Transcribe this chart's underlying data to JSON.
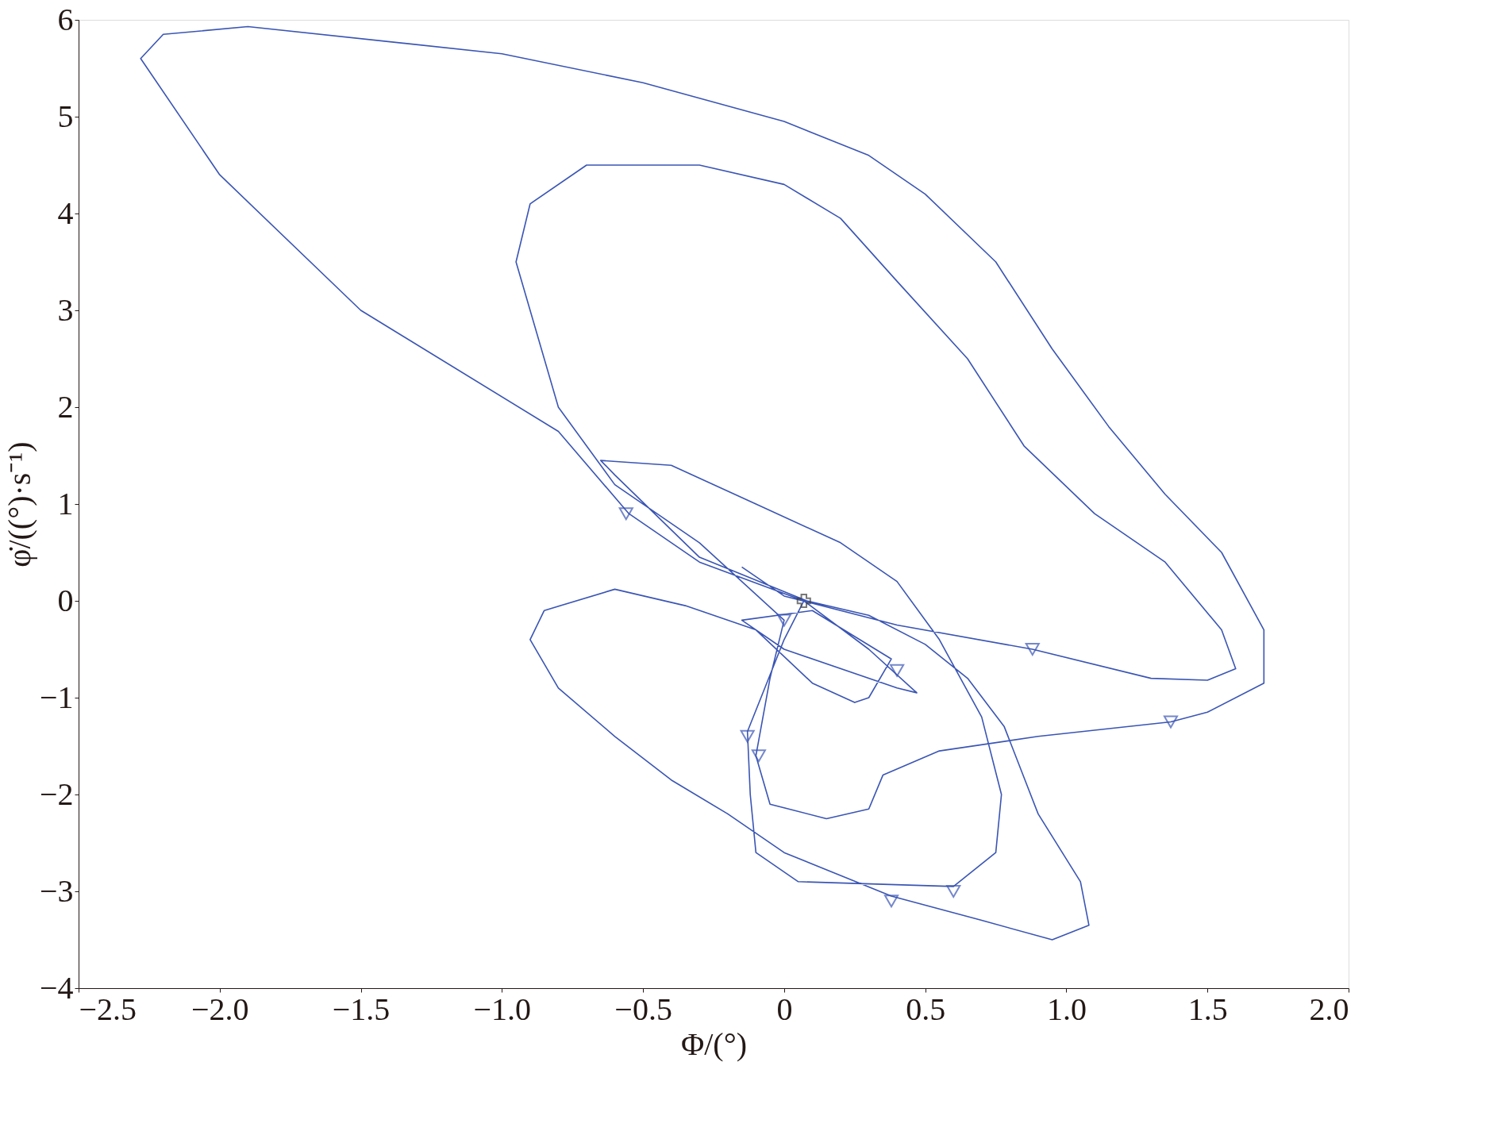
{
  "chart_data": {
    "type": "line",
    "xlabel": "Φ/(°)",
    "ylabel": "φ̇/((°)·s⁻¹)",
    "xlim": [
      -2.5,
      2.0
    ],
    "ylim": [
      -4,
      6
    ],
    "xticks": [
      -2.5,
      {
        "value": -2,
        "label": "−2.0"
      },
      -1.5,
      {
        "value": -1,
        "label": "−1.0"
      },
      -0.5,
      0,
      0.5,
      {
        "value": 1,
        "label": "1.0"
      },
      1.5,
      {
        "value": 2,
        "label": "2.0"
      }
    ],
    "yticks": [
      -4,
      -3,
      -2,
      -1,
      0,
      1,
      2,
      3,
      4,
      5,
      6
    ],
    "grid": false,
    "series": [
      {
        "color": "#3a55b4",
        "marker": "none",
        "line_style": "solid",
        "x": [
          0.07,
          0.3,
          0.47,
          0.4,
          0.0,
          -0.15,
          0.1,
          0.38,
          0.3,
          0.25,
          0.1,
          -0.1,
          -0.35,
          -0.6,
          -0.85,
          -0.9,
          -0.8,
          -0.6,
          -0.4,
          -0.2,
          0.0,
          0.38,
          0.7,
          0.95,
          1.08,
          1.05,
          0.9,
          0.78,
          0.65,
          0.5,
          0.3,
          0.08,
          -0.3,
          -0.6,
          -0.65,
          -0.4,
          -0.1,
          0.2,
          0.4,
          0.55,
          0.7,
          0.77,
          0.75,
          0.6,
          0.05,
          -0.1,
          -0.12,
          -0.13,
          0.0,
          0.07,
          -0.3,
          -0.55,
          -0.8,
          -1.5,
          -2.0,
          -2.28,
          -2.2,
          -1.9,
          -1.0,
          -0.5,
          0.0,
          0.3,
          0.5,
          0.75,
          0.95,
          1.15,
          1.35,
          1.55,
          1.7,
          1.7,
          1.5,
          1.37,
          0.9,
          0.55,
          0.35,
          0.3,
          0.15,
          -0.05,
          -0.1,
          -0.05,
          0.0,
          -0.3,
          -0.6,
          -0.8,
          -0.95,
          -0.9,
          -0.7,
          -0.3,
          0.0,
          0.2,
          0.4,
          0.65,
          0.85,
          1.1,
          1.35,
          1.55,
          1.6,
          1.5,
          1.3,
          0.88,
          0.4,
          0.0,
          -0.15
        ],
        "values": [
          0.0,
          -0.5,
          -0.95,
          -0.9,
          -0.5,
          -0.2,
          -0.1,
          -0.6,
          -1.0,
          -1.05,
          -0.85,
          -0.3,
          -0.05,
          0.12,
          -0.1,
          -0.4,
          -0.9,
          -1.4,
          -1.85,
          -2.2,
          -2.6,
          -3.05,
          -3.3,
          -3.5,
          -3.35,
          -2.9,
          -2.2,
          -1.3,
          -0.8,
          -0.45,
          -0.15,
          0.0,
          0.45,
          1.3,
          1.45,
          1.4,
          1.0,
          0.6,
          0.2,
          -0.4,
          -1.2,
          -2.0,
          -2.6,
          -2.95,
          -2.9,
          -2.6,
          -2.0,
          -1.35,
          -0.4,
          0.0,
          0.4,
          0.9,
          1.75,
          3.0,
          4.4,
          5.6,
          5.85,
          5.93,
          5.65,
          5.35,
          4.95,
          4.6,
          4.2,
          3.5,
          2.6,
          1.8,
          1.1,
          0.5,
          -0.3,
          -0.85,
          -1.15,
          -1.25,
          -1.4,
          -1.55,
          -1.8,
          -2.15,
          -2.25,
          -2.1,
          -1.6,
          -0.8,
          -0.2,
          0.6,
          1.2,
          2.0,
          3.5,
          4.1,
          4.5,
          4.5,
          4.3,
          3.95,
          3.3,
          2.5,
          1.6,
          0.9,
          0.4,
          -0.3,
          -0.7,
          -0.82,
          -0.8,
          -0.5,
          -0.25,
          0.05,
          0.35
        ]
      },
      {
        "type": "scatter",
        "color": "#3a55b4",
        "marker": "triangle",
        "x": [
          -0.56,
          0.88,
          1.37,
          0.4,
          -0.13,
          -0.09,
          0.0,
          0.6,
          0.38
        ],
        "values": [
          0.9,
          -0.5,
          -1.25,
          -0.72,
          -1.4,
          -1.6,
          -0.2,
          -3.0,
          -3.1
        ]
      },
      {
        "type": "scatter",
        "color": "#404040",
        "marker": "cross",
        "x": [
          0.07
        ],
        "values": [
          0.0
        ]
      }
    ]
  }
}
